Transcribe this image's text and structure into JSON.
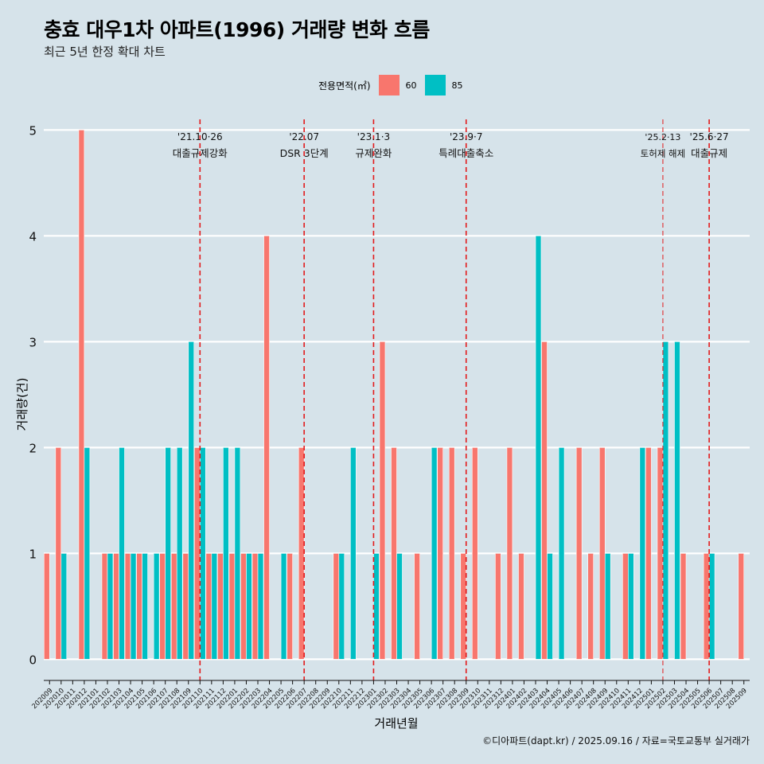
{
  "title": "충효 대우1차 아파트(1996) 거래량 변화 흐름",
  "subtitle": "최근 5년 한정 확대 차트",
  "caption": "©디아파트(dapt.kr) / 2025.09.16 / 자료=국토교통부 실거래가",
  "legend": {
    "title": "전용면적(㎡)",
    "items": [
      {
        "label": "60",
        "color": "#f8766d"
      },
      {
        "label": "85",
        "color": "#00bfc4"
      }
    ]
  },
  "chart_data": {
    "type": "bar",
    "title": "충효 대우1차 아파트(1996) 거래량 변화 흐름",
    "subtitle": "최근 5년 한정 확대 차트",
    "xlabel": "거래년월",
    "ylabel": "거래량(건)",
    "ylim": [
      -0.2,
      5.1
    ],
    "yticks": [
      0,
      1,
      2,
      3,
      4,
      5
    ],
    "grid": true,
    "legend_position": "top",
    "categories": [
      "202009",
      "202010",
      "202011",
      "202012",
      "202101",
      "202102",
      "202103",
      "202104",
      "202105",
      "202106",
      "202107",
      "202108",
      "202109",
      "202110",
      "202111",
      "202112",
      "202201",
      "202202",
      "202203",
      "202204",
      "202205",
      "202206",
      "202207",
      "202208",
      "202209",
      "202210",
      "202211",
      "202212",
      "202301",
      "202302",
      "202303",
      "202304",
      "202305",
      "202306",
      "202307",
      "202308",
      "202309",
      "202310",
      "202311",
      "202312",
      "202401",
      "202402",
      "202403",
      "202404",
      "202405",
      "202406",
      "202407",
      "202408",
      "202409",
      "202410",
      "202411",
      "202412",
      "202501",
      "202502",
      "202503",
      "202504",
      "202505",
      "202506",
      "202507",
      "202508",
      "202509"
    ],
    "series": [
      {
        "name": "60",
        "color": "#f8766d",
        "values": [
          1,
          2,
          0,
          5,
          0,
          1,
          1,
          1,
          1,
          0,
          1,
          1,
          1,
          2,
          1,
          1,
          1,
          1,
          1,
          4,
          0,
          1,
          2,
          0,
          0,
          1,
          0,
          0,
          0,
          3,
          2,
          0,
          1,
          0,
          2,
          2,
          1,
          2,
          0,
          1,
          2,
          1,
          0,
          3,
          0,
          0,
          2,
          1,
          2,
          0,
          1,
          0,
          2,
          2,
          0,
          1,
          0,
          1,
          0,
          0,
          1
        ]
      },
      {
        "name": "85",
        "color": "#00bfc4",
        "values": [
          0,
          1,
          0,
          2,
          0,
          1,
          2,
          1,
          1,
          1,
          2,
          2,
          3,
          2,
          1,
          2,
          2,
          1,
          1,
          0,
          1,
          0,
          0,
          0,
          0,
          1,
          2,
          0,
          1,
          0,
          1,
          0,
          0,
          2,
          0,
          0,
          0,
          0,
          0,
          0,
          0,
          0,
          4,
          1,
          2,
          0,
          0,
          0,
          1,
          0,
          1,
          2,
          0,
          3,
          3,
          0,
          0,
          1,
          0,
          0,
          0
        ]
      }
    ],
    "annotations": [
      {
        "x": "202110",
        "line1": "'21.10·26",
        "line2": "대출규제강화"
      },
      {
        "x": "202207",
        "line1": "'22.07",
        "line2": "DSR 3단계"
      },
      {
        "x": "202301",
        "line1": "'23.1·3",
        "line2": "규제완화"
      },
      {
        "x": "202309",
        "line1": "'23.9·7",
        "line2": "특례대출축소"
      },
      {
        "x": "202502",
        "line1": "'25.2·13",
        "line2": "토허제 해제"
      },
      {
        "x": "202506",
        "line1": "'25.6·27",
        "line2": "대출규제"
      }
    ]
  }
}
